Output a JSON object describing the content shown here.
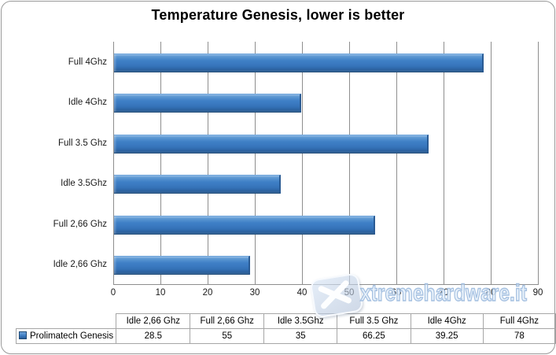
{
  "chart_data": {
    "type": "bar",
    "orientation": "horizontal",
    "title": "Temperature Genesis, lower is better",
    "categories": [
      "Full 4Ghz",
      "Idle 4Ghz",
      "Full 3.5 Ghz",
      "Idle 3.5Ghz",
      "Full 2,66 Ghz",
      "Idle 2,66 Ghz"
    ],
    "series": [
      {
        "name": "Prolimatech Genesis",
        "values": [
          78,
          39.25,
          66.25,
          35,
          55,
          28.5
        ]
      }
    ],
    "xlabel": "",
    "ylabel": "",
    "xlim": [
      0,
      90
    ],
    "x_ticks": [
      "0",
      "10",
      "20",
      "30",
      "40",
      "50",
      "60",
      "70",
      "80",
      "90"
    ],
    "grid": "vertical",
    "legend_position": "bottom-table"
  },
  "data_table": {
    "corner_label": "",
    "column_headers": [
      "Idle 2,66 Ghz",
      "Full 2,66 Ghz",
      "Idle 3.5Ghz",
      "Full 3.5 Ghz",
      "Idle 4Ghz",
      "Full 4Ghz"
    ],
    "rows": [
      {
        "series_label": "Prolimatech Genesis",
        "values": [
          "28.5",
          "55",
          "35",
          "66.25",
          "39.25",
          "78"
        ]
      }
    ]
  },
  "watermark": {
    "text": "xtremehardware.it"
  },
  "colors": {
    "bar_main": "#3a79c0",
    "bar_highlight": "#8ab6e4",
    "bar_shadow": "#1f4a77",
    "gridline": "#8e8e8e",
    "text": "#1a1a1a",
    "table_border": "#a6a6a6",
    "frame_border": "#9a9a9a",
    "watermark_blue": "#96b6dc"
  }
}
